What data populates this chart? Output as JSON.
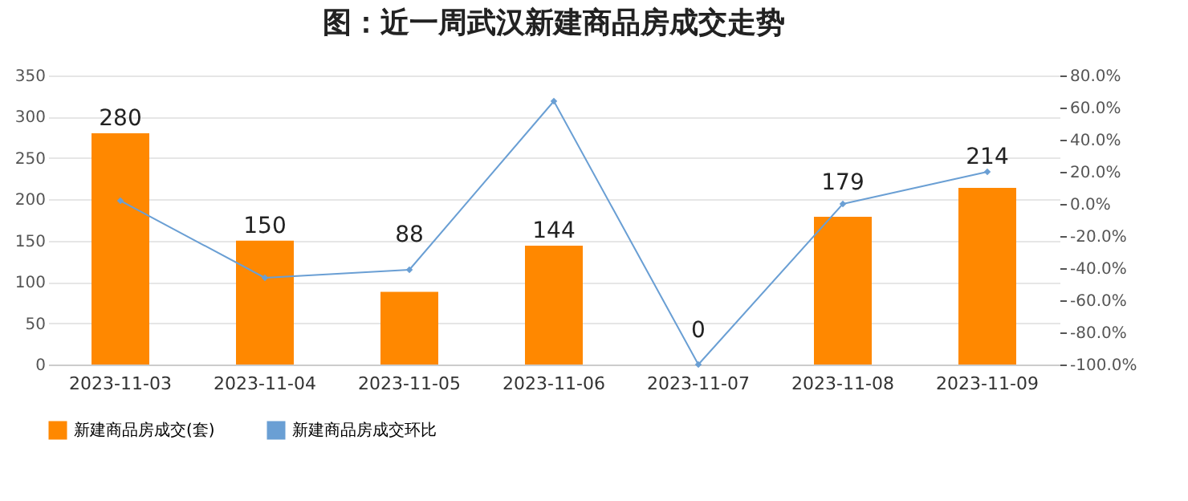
{
  "chart_data": {
    "type": "bar",
    "title": "图：近一周武汉新建商品房成交走势",
    "categories": [
      "2023-11-03",
      "2023-11-04",
      "2023-11-05",
      "2023-11-06",
      "2023-11-07",
      "2023-11-08",
      "2023-11-09"
    ],
    "series": [
      {
        "name": "新建商品房成交(套)",
        "color": "#ff8800",
        "values": [
          280,
          150,
          88,
          144,
          0,
          179,
          214
        ],
        "value_labels": [
          "280",
          "150",
          "88",
          "144",
          "0",
          "179",
          "214"
        ]
      },
      {
        "name": "新建商品房成交环比",
        "type": "line",
        "axis": "y2",
        "color": "#6a9fd4",
        "marker": "diamond",
        "values": [
          2,
          -46,
          -41,
          64,
          -100,
          0,
          20
        ]
      }
    ],
    "ylim": [
      0,
      350
    ],
    "yticks": [
      0,
      50,
      100,
      150,
      200,
      250,
      300,
      350
    ],
    "y2lim": [
      -100,
      80
    ],
    "y2ticks": [
      {
        "value": -100,
        "label": "-100.0%"
      },
      {
        "value": -80,
        "label": "-80.0%"
      },
      {
        "value": -60,
        "label": "-60.0%"
      },
      {
        "value": -40,
        "label": "-40.0%"
      },
      {
        "value": -20,
        "label": "-20.0%"
      },
      {
        "value": 0,
        "label": "0.0%"
      },
      {
        "value": 20,
        "label": "20.0%"
      },
      {
        "value": 40,
        "label": "40.0%"
      },
      {
        "value": 60,
        "label": "60.0%"
      },
      {
        "value": 80,
        "label": "80.0%"
      }
    ],
    "grid": "y",
    "legend": "bottom"
  }
}
